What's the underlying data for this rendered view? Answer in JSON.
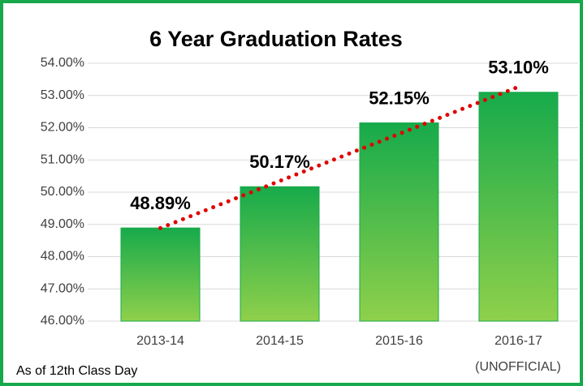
{
  "chart_data": {
    "type": "bar",
    "title": "6 Year Graduation Rates",
    "categories": [
      "2013-14",
      "2014-15",
      "2015-16",
      "2016-17"
    ],
    "values": [
      48.89,
      50.17,
      52.15,
      53.1
    ],
    "value_labels": [
      "48.89%",
      "50.17%",
      "52.15%",
      "53.10%"
    ],
    "annotations": [
      "(UNOFFICIAL)",
      "As of 12th Class Day"
    ],
    "color": "#17aa4b",
    "gradient_end_color": "#8fd04b",
    "trendline": true,
    "trendline_color": "#e00000",
    "border_color": "#18a84c",
    "ylim": [
      46,
      54
    ],
    "yticks": [
      {
        "value": 46,
        "label": "46.00%"
      },
      {
        "value": 47,
        "label": "47.00%"
      },
      {
        "value": 48,
        "label": "48.00%"
      },
      {
        "value": 49,
        "label": "49.00%"
      },
      {
        "value": 50,
        "label": "50.00%"
      },
      {
        "value": 51,
        "label": "51.00%"
      },
      {
        "value": 52,
        "label": "52.00%"
      },
      {
        "value": 53,
        "label": "53.00%"
      },
      {
        "value": 54,
        "label": "54.00%"
      }
    ],
    "grid": true
  }
}
